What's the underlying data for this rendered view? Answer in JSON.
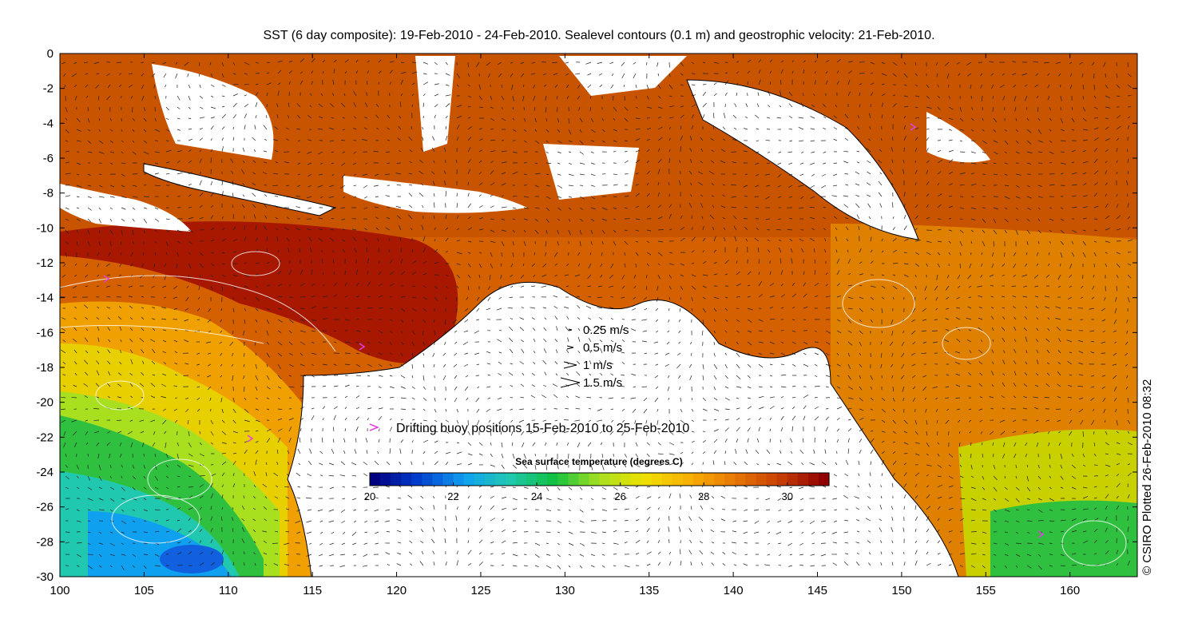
{
  "title": "SST (6 day composite): 19-Feb-2010 - 24-Feb-2010. Sealevel contours (0.1 m) and geostrophic velocity: 21-Feb-2010.",
  "credit": "© CSIRO Plotted 26-Feb-2010 08:32",
  "map": {
    "x_axis": {
      "min": 100,
      "max": 164,
      "ticks": [
        100,
        105,
        110,
        115,
        120,
        125,
        130,
        135,
        140,
        145,
        150,
        155,
        160
      ]
    },
    "y_axis": {
      "min": -30,
      "max": 0,
      "ticks": [
        0,
        -2,
        -4,
        -6,
        -8,
        -10,
        -12,
        -14,
        -16,
        -18,
        -20,
        -22,
        -24,
        -26,
        -28,
        -30
      ]
    }
  },
  "velocity_legend": [
    {
      "label": "0.25 m/s",
      "speed": 0.25
    },
    {
      "label": "0.5 m/s",
      "speed": 0.5
    },
    {
      "label": "1 m/s",
      "speed": 1
    },
    {
      "label": "1.5 m/s",
      "speed": 1.5
    }
  ],
  "buoy_legend": {
    "label": "Drifting buoy positions 15-Feb-2010 to 25-Feb-2010",
    "color": "#e040e0"
  },
  "colorbar": {
    "title": "Sea surface temperature (degrees C)",
    "min": 20,
    "max": 31,
    "ticks": [
      20,
      22,
      24,
      26,
      28,
      30
    ],
    "colors": [
      "#000080",
      "#0040d0",
      "#10a0f0",
      "#20c8b0",
      "#10c040",
      "#a8e020",
      "#f0e000",
      "#f8b000",
      "#e87800",
      "#c84000",
      "#900000"
    ]
  }
}
